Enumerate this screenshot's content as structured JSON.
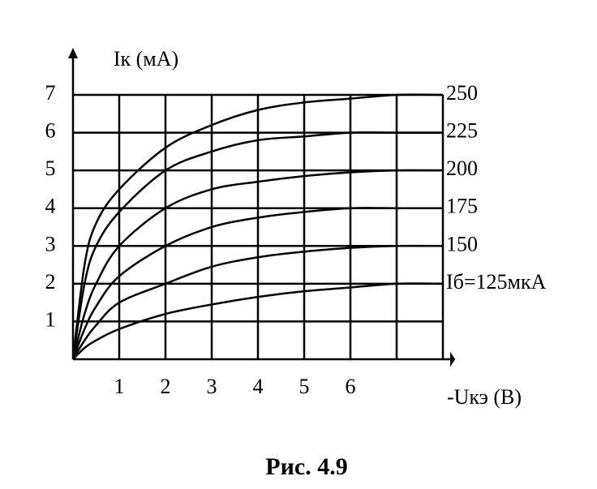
{
  "chart_data": {
    "type": "line",
    "title": "Рис. 4.9",
    "y_label": "Iк (мА)",
    "x_label": "-Uкэ (В)",
    "x": [
      0,
      0.25,
      0.5,
      1,
      2,
      3,
      4,
      5,
      6,
      7,
      8
    ],
    "series": [
      {
        "name": "250",
        "color": "#000000",
        "values": [
          0,
          2.5,
          3.6,
          4.5,
          5.6,
          6.2,
          6.6,
          6.8,
          6.9,
          7.0,
          7.0
        ]
      },
      {
        "name": "225",
        "color": "#000000",
        "values": [
          0,
          2.0,
          3.0,
          3.9,
          5.0,
          5.5,
          5.8,
          5.9,
          6.0,
          6.0,
          6.0
        ]
      },
      {
        "name": "200",
        "color": "#000000",
        "values": [
          0,
          1.2,
          2.0,
          3.0,
          4.0,
          4.5,
          4.7,
          4.85,
          4.95,
          5.0,
          5.0
        ]
      },
      {
        "name": "175",
        "color": "#000000",
        "values": [
          0,
          0.8,
          1.4,
          2.2,
          3.0,
          3.5,
          3.75,
          3.9,
          4.0,
          4.0,
          4.0
        ]
      },
      {
        "name": "150",
        "color": "#000000",
        "values": [
          0,
          0.5,
          0.9,
          1.5,
          2.0,
          2.45,
          2.7,
          2.85,
          2.95,
          3.0,
          3.0
        ]
      },
      {
        "name": "Iб=125мкА",
        "color": "#000000",
        "values": [
          0,
          0.3,
          0.5,
          0.8,
          1.2,
          1.45,
          1.65,
          1.8,
          1.9,
          2.0,
          2.0
        ]
      }
    ],
    "xlim": [
      0,
      8
    ],
    "ylim": [
      0,
      7
    ],
    "xticks": [
      1,
      2,
      3,
      4,
      5,
      6
    ],
    "yticks": [
      1,
      2,
      3,
      4,
      5,
      6,
      7
    ],
    "grid": true
  }
}
